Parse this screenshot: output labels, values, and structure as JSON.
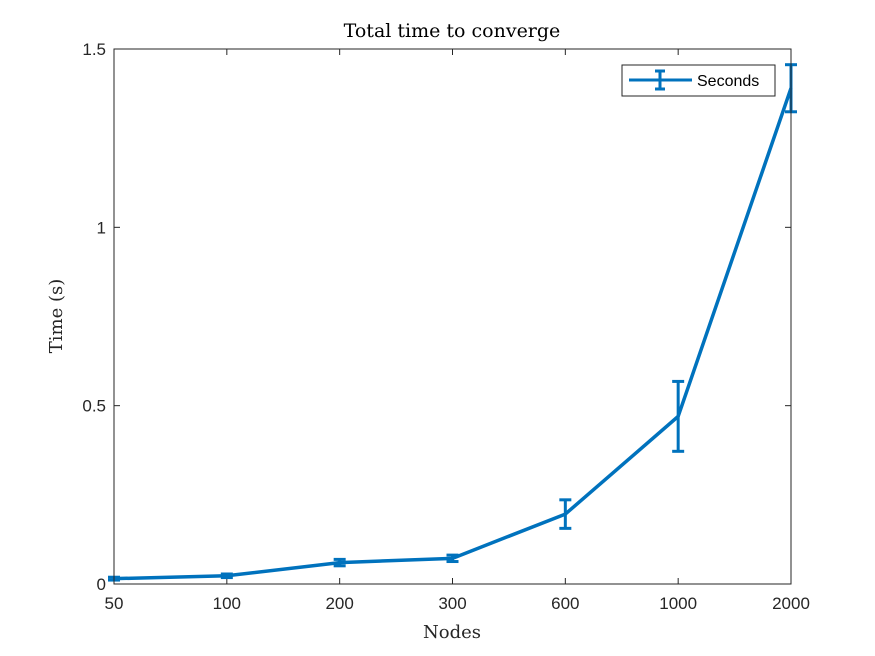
{
  "chart_data": {
    "type": "line",
    "title": "Total time to converge",
    "xlabel": "Nodes",
    "ylabel": "Time (s)",
    "categories": [
      "50",
      "100",
      "200",
      "300",
      "600",
      "1000",
      "2000"
    ],
    "series": [
      {
        "name": "Seconds",
        "values": [
          0.015,
          0.023,
          0.06,
          0.072,
          0.196,
          0.47,
          1.39
        ],
        "error": [
          0.004,
          0.005,
          0.009,
          0.009,
          0.04,
          0.098,
          0.066
        ]
      }
    ],
    "ylim": [
      0,
      1.5
    ],
    "yticks": [
      0,
      0.5,
      1,
      1.5
    ],
    "ytick_labels": [
      "0",
      "0.5",
      "1",
      "1.5"
    ],
    "grid": false,
    "legend_position": "top-right",
    "colors": {
      "series": "#0072BD",
      "axes": "#262626"
    }
  }
}
